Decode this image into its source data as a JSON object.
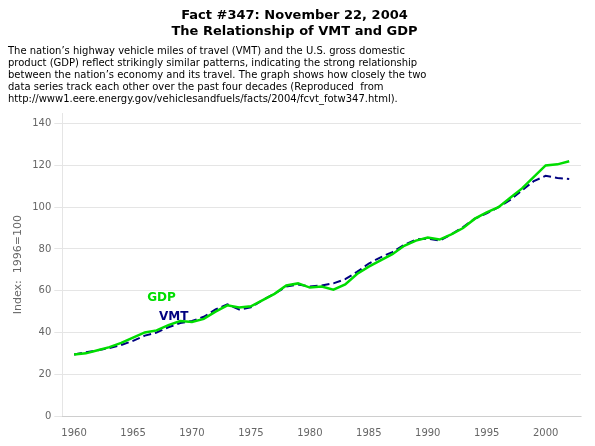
{
  "chart_data": {
    "type": "line",
    "title": [
      "Fact #347: November 22, 2004",
      "The Relationship of VMT and GDP"
    ],
    "subtitle": [
      "The nation’s highway vehicle miles of travel (VMT) and the U.S. gross domestic",
      "product (GDP) reflect strikingly similar patterns, indicating the strong relationship",
      "between the nation’s economy and its travel. The graph shows how closely the two",
      "data series track each other over the past four decades (Reproduced  from",
      "http://www1.eere.energy.gov/vehiclesandfuels/facts/2004/fcvt_fotw347.html)."
    ],
    "ylabel": "Index:  1996=100",
    "x": [
      1960,
      1961,
      1962,
      1963,
      1964,
      1965,
      1966,
      1967,
      1968,
      1969,
      1970,
      1971,
      1972,
      1973,
      1974,
      1975,
      1976,
      1977,
      1978,
      1979,
      1980,
      1981,
      1982,
      1983,
      1984,
      1985,
      1986,
      1987,
      1988,
      1989,
      1990,
      1991,
      1992,
      1993,
      1994,
      1995,
      1996,
      1997,
      1998,
      1999,
      2000,
      2001,
      2002
    ],
    "series": [
      {
        "name": "GDP",
        "color": "#00dd00",
        "line_style": "solid",
        "values": [
          29.5,
          30.0,
          31.5,
          33.0,
          35.0,
          37.5,
          40.0,
          41.0,
          43.5,
          45.5,
          45.0,
          46.5,
          50.0,
          53.0,
          52.0,
          52.5,
          55.5,
          58.5,
          62.5,
          63.5,
          61.5,
          62.0,
          60.5,
          63.0,
          68.0,
          71.5,
          74.5,
          77.5,
          81.5,
          84.0,
          85.5,
          84.5,
          87.0,
          90.0,
          94.5,
          97.5,
          100.0,
          104.5,
          109.0,
          114.5,
          120.0,
          120.5,
          122.0
        ]
      },
      {
        "name": "VMT",
        "color": "#000080",
        "line_style": "dashed",
        "values": [
          29.5,
          30.5,
          31.5,
          32.5,
          34.0,
          36.0,
          38.5,
          40.0,
          42.5,
          44.5,
          45.5,
          47.5,
          51.0,
          53.5,
          51.0,
          52.0,
          55.5,
          58.5,
          62.0,
          63.0,
          62.0,
          62.5,
          63.5,
          65.5,
          69.0,
          73.0,
          76.0,
          78.5,
          82.0,
          84.5,
          85.0,
          84.0,
          87.0,
          90.5,
          94.5,
          97.0,
          100.0,
          103.5,
          108.0,
          112.5,
          115.0,
          114.0,
          113.5
        ]
      }
    ],
    "annotations": [
      {
        "text": "GDP",
        "x": 1966.2,
        "y": 53.5,
        "color": "#00dd00"
      },
      {
        "text": "VMT",
        "x": 1967.2,
        "y": 44.5,
        "color": "#000080"
      }
    ],
    "xlim": [
      1959,
      2003
    ],
    "ylim": [
      0,
      145
    ],
    "xticks": [
      1960,
      1965,
      1970,
      1975,
      1980,
      1985,
      1990,
      1995,
      2000
    ],
    "yticks": [
      0,
      20,
      40,
      60,
      80,
      100,
      120,
      140
    ],
    "grid": "y"
  }
}
